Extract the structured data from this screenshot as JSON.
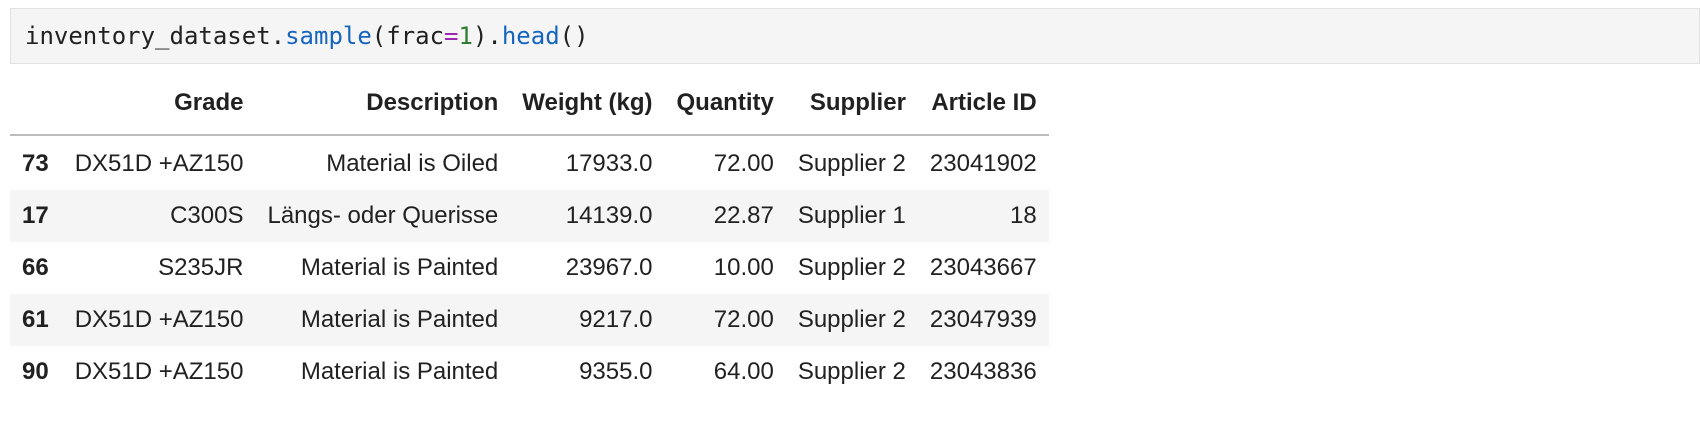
{
  "code_cell": {
    "var": "inventory_dataset",
    "dot1": ".",
    "method1": "sample",
    "paren_open": "(",
    "arg_name": "frac",
    "equals": "=",
    "arg_value": "1",
    "paren_close": ")",
    "dot2": ".",
    "method2": "head",
    "call_parens": "()"
  },
  "table": {
    "index_header": "",
    "columns": [
      "Grade",
      "Description",
      "Weight (kg)",
      "Quantity",
      "Supplier",
      "Article ID"
    ],
    "rows": [
      {
        "index": "73",
        "cells": [
          "DX51D +AZ150",
          "Material is Oiled",
          "17933.0",
          "72.00",
          "Supplier 2",
          "23041902"
        ]
      },
      {
        "index": "17",
        "cells": [
          "C300S",
          "Längs- oder Querisse",
          "14139.0",
          "22.87",
          "Supplier 1",
          "18"
        ]
      },
      {
        "index": "66",
        "cells": [
          "S235JR",
          "Material is Painted",
          "23967.0",
          "10.00",
          "Supplier 2",
          "23043667"
        ]
      },
      {
        "index": "61",
        "cells": [
          "DX51D +AZ150",
          "Material is Painted",
          "9217.0",
          "72.00",
          "Supplier 2",
          "23047939"
        ]
      },
      {
        "index": "90",
        "cells": [
          "DX51D +AZ150",
          "Material is Painted",
          "9355.0",
          "64.00",
          "Supplier 2",
          "23043836"
        ]
      }
    ]
  },
  "colors": {
    "code_background": "#f5f5f5",
    "function_color": "#1565c0",
    "operator_color": "#9c27b0",
    "number_color": "#2e7d32",
    "striped_row": "#f5f5f5"
  }
}
